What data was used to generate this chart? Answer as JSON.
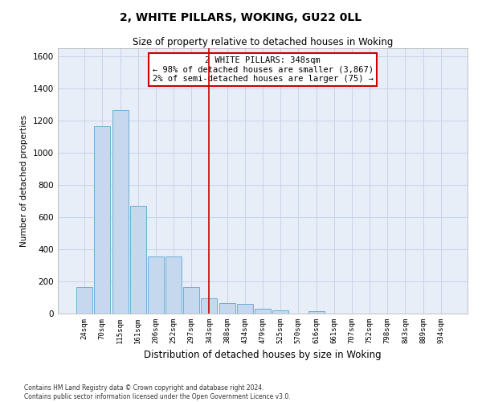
{
  "title": "2, WHITE PILLARS, WOKING, GU22 0LL",
  "subtitle": "Size of property relative to detached houses in Woking",
  "xlabel": "Distribution of detached houses by size in Woking",
  "ylabel": "Number of detached properties",
  "bar_labels": [
    "24sqm",
    "70sqm",
    "115sqm",
    "161sqm",
    "206sqm",
    "252sqm",
    "297sqm",
    "343sqm",
    "388sqm",
    "434sqm",
    "479sqm",
    "525sqm",
    "570sqm",
    "616sqm",
    "661sqm",
    "707sqm",
    "752sqm",
    "798sqm",
    "843sqm",
    "889sqm",
    "934sqm"
  ],
  "bar_values": [
    165,
    1165,
    1265,
    670,
    355,
    355,
    165,
    95,
    65,
    60,
    30,
    20,
    0,
    15,
    0,
    0,
    0,
    0,
    0,
    0,
    0
  ],
  "bar_color": "#c5d8ee",
  "bar_edge_color": "#6baed6",
  "vline_x_index": 7,
  "vline_color": "#cc0000",
  "ylim": [
    0,
    1650
  ],
  "yticks": [
    0,
    200,
    400,
    600,
    800,
    1000,
    1200,
    1400,
    1600
  ],
  "annotation_text": "2 WHITE PILLARS: 348sqm\n← 98% of detached houses are smaller (3,867)\n2% of semi-detached houses are larger (75) →",
  "annotation_box_color": "#ffffff",
  "annotation_box_edge": "#cc0000",
  "grid_color": "#c8d4e8",
  "background_color": "#e8eef8",
  "footer_line1": "Contains HM Land Registry data © Crown copyright and database right 2024.",
  "footer_line2": "Contains public sector information licensed under the Open Government Licence v3.0."
}
